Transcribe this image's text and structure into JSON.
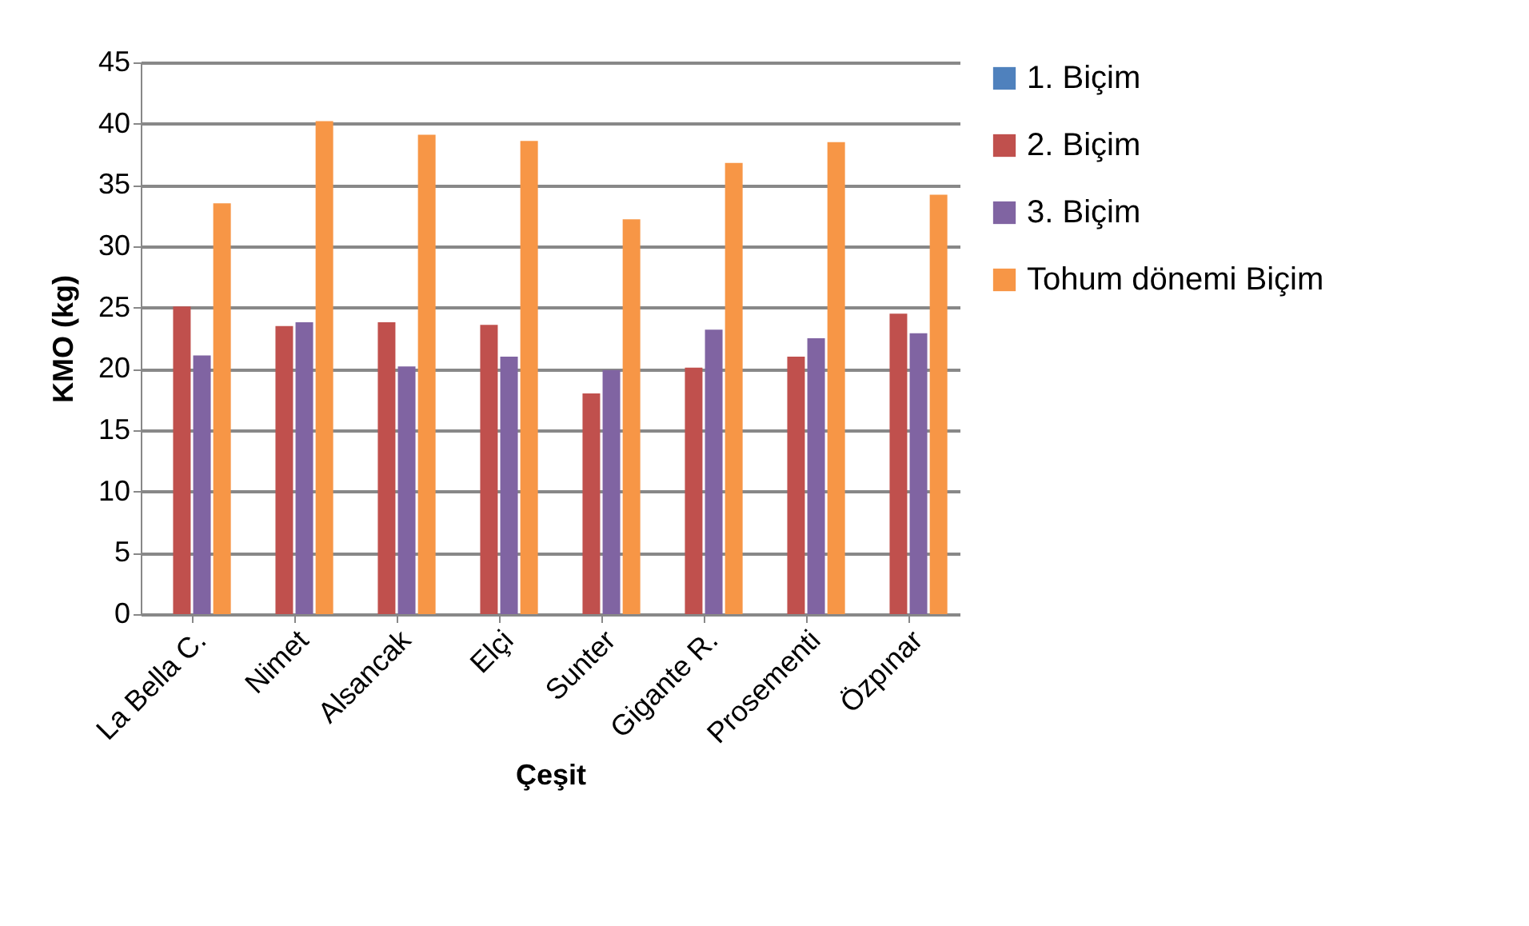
{
  "chart_data": {
    "type": "bar",
    "xlabel": "Çeşit",
    "ylabel": "KMO (kg)",
    "categories": [
      "La Bella C.",
      "Nimet",
      "Alsancak",
      "Elçi",
      "Sunter",
      "Gigante R.",
      "Prosementi",
      "Özpınar"
    ],
    "series": [
      {
        "name": "1. Biçim",
        "color": "#4f81bd",
        "values": [
          null,
          null,
          null,
          null,
          null,
          null,
          null,
          null
        ]
      },
      {
        "name": "2. Biçim",
        "color": "#c0504d",
        "values": [
          25.1,
          23.5,
          23.8,
          23.6,
          18.0,
          20.1,
          21.0,
          24.5
        ]
      },
      {
        "name": "3. Biçim",
        "color": "#8064a2",
        "values": [
          21.1,
          23.8,
          20.2,
          21.0,
          19.9,
          23.2,
          22.5,
          22.9
        ]
      },
      {
        "name": "Tohum dönemi Biçim",
        "color": "#f79646",
        "values": [
          33.5,
          40.2,
          39.1,
          38.6,
          32.2,
          36.8,
          38.5,
          34.2
        ]
      }
    ],
    "ylim": [
      0,
      45
    ],
    "yticks": [
      0,
      5,
      10,
      15,
      20,
      25,
      30,
      35,
      40,
      45
    ],
    "grid": "y",
    "legend": "right"
  }
}
